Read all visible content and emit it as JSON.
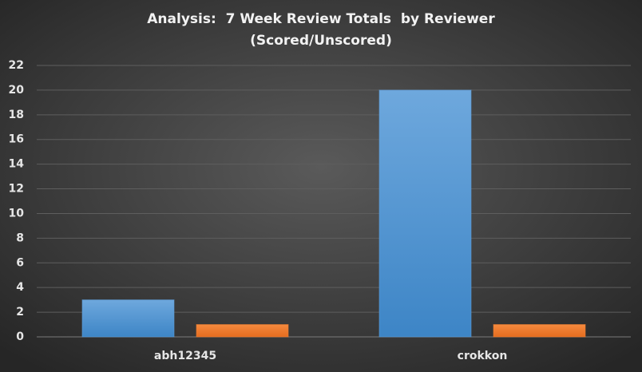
{
  "chart_data": {
    "type": "bar",
    "title": "Analysis:  7 Week Review Totals  by Reviewer",
    "subtitle": "(Scored/Unscored)",
    "categories": [
      "abh12345",
      "crokkon"
    ],
    "series": [
      {
        "color": "#5b9bd5",
        "values": [
          3,
          20
        ]
      },
      {
        "color": "#ed7d31",
        "values": [
          1,
          1
        ]
      }
    ],
    "ylim": [
      0,
      22
    ],
    "yticks": [
      0,
      2,
      4,
      6,
      8,
      10,
      12,
      14,
      16,
      18,
      20,
      22
    ],
    "grid": true
  }
}
